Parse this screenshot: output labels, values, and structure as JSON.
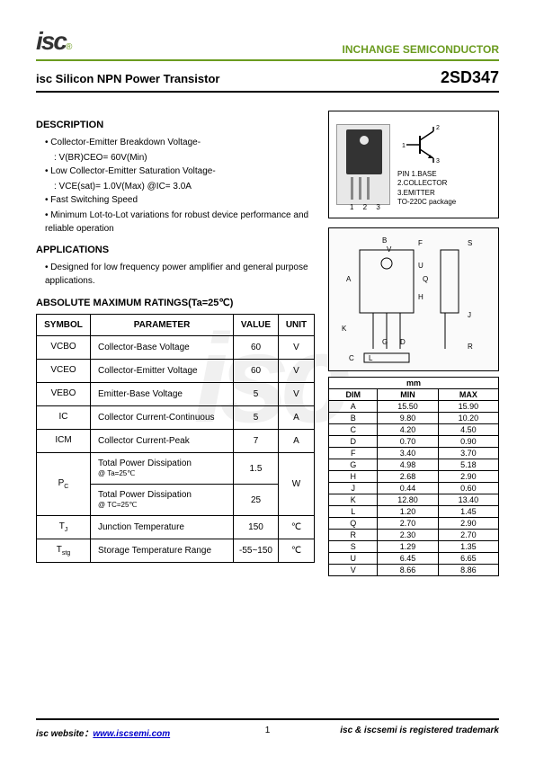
{
  "header": {
    "logo_text": "isc",
    "logo_r": "®",
    "company": "INCHANGE SEMICONDUCTOR"
  },
  "title": {
    "product": "isc Silicon NPN Power Transistor",
    "part_number": "2SD347"
  },
  "description": {
    "heading": "DESCRIPTION",
    "items": [
      {
        "main": "Collector-Emitter Breakdown Voltage-",
        "sub": ": V(BR)CEO= 60V(Min)"
      },
      {
        "main": "Low Collector-Emitter Saturation Voltage-",
        "sub": ": VCE(sat)= 1.0V(Max) @IC= 3.0A"
      },
      {
        "main": "Fast Switching Speed",
        "sub": ""
      },
      {
        "main": "Minimum Lot-to-Lot variations for robust device performance and reliable operation",
        "sub": ""
      }
    ]
  },
  "applications": {
    "heading": "APPLICATIONS",
    "items": [
      {
        "main": "Designed for low frequency power amplifier and general purpose applications.",
        "sub": ""
      }
    ]
  },
  "ratings": {
    "heading": "ABSOLUTE MAXIMUM RATINGS(Ta=25℃)",
    "columns": [
      "SYMBOL",
      "PARAMETER",
      "VALUE",
      "UNIT"
    ],
    "rows": [
      {
        "symbol": "VCBO",
        "param": "Collector-Base Voltage",
        "value": "60",
        "unit": "V",
        "rowspan": 1
      },
      {
        "symbol": "VCEO",
        "param": "Collector-Emitter Voltage",
        "value": "60",
        "unit": "V",
        "rowspan": 1
      },
      {
        "symbol": "VEBO",
        "param": "Emitter-Base Voltage",
        "value": "5",
        "unit": "V",
        "rowspan": 1
      },
      {
        "symbol": "IC",
        "param": "Collector Current-Continuous",
        "value": "5",
        "unit": "A",
        "rowspan": 1
      },
      {
        "symbol": "ICM",
        "param": "Collector Current-Peak",
        "value": "7",
        "unit": "A",
        "rowspan": 1
      }
    ],
    "pc_rows": [
      {
        "param": "Total Power Dissipation",
        "cond": "@ Ta=25℃",
        "value": "1.5"
      },
      {
        "param": "Total Power Dissipation",
        "cond": "@ TC=25℃",
        "value": "25"
      }
    ],
    "pc_symbol": "PC",
    "pc_unit": "W",
    "tj": {
      "symbol": "TJ",
      "param": "Junction Temperature",
      "value": "150",
      "unit": "℃"
    },
    "tstg": {
      "symbol": "Tstg",
      "param": "Storage Temperature Range",
      "value": "-55~150",
      "unit": "℃"
    }
  },
  "pins": {
    "labels": [
      "PIN 1.BASE",
      "2.COLLECTOR",
      "3.EMITTER",
      "TO-220C package"
    ],
    "nums": "1 2 3"
  },
  "dimensions": {
    "header": "mm",
    "columns": [
      "DIM",
      "MIN",
      "MAX"
    ],
    "rows": [
      [
        "A",
        "15.50",
        "15.90"
      ],
      [
        "B",
        "9.80",
        "10.20"
      ],
      [
        "C",
        "4.20",
        "4.50"
      ],
      [
        "D",
        "0.70",
        "0.90"
      ],
      [
        "F",
        "3.40",
        "3.70"
      ],
      [
        "G",
        "4.98",
        "5.18"
      ],
      [
        "H",
        "2.68",
        "2.90"
      ],
      [
        "J",
        "0.44",
        "0.60"
      ],
      [
        "K",
        "12.80",
        "13.40"
      ],
      [
        "L",
        "1.20",
        "1.45"
      ],
      [
        "Q",
        "2.70",
        "2.90"
      ],
      [
        "R",
        "2.30",
        "2.70"
      ],
      [
        "S",
        "1.29",
        "1.35"
      ],
      [
        "U",
        "6.45",
        "6.65"
      ],
      [
        "V",
        "8.66",
        "8.86"
      ]
    ]
  },
  "footer": {
    "website_label": "isc website：",
    "website_url": "www.iscsemi.com",
    "page": "1",
    "trademark": "isc & iscsemi is registered trademark"
  },
  "watermark": "isc"
}
